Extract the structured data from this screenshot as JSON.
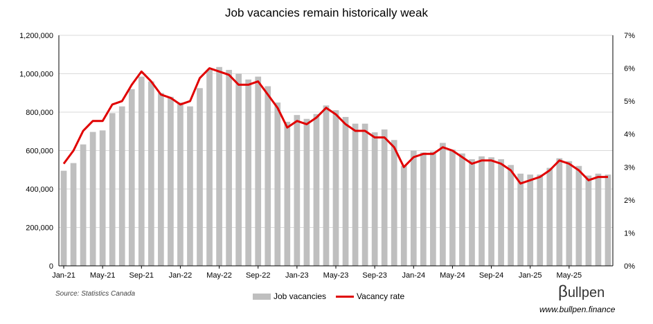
{
  "chart_data": {
    "type": "bar+line",
    "title": "Job vacancies remain historically weak",
    "x_tick_labels": [
      "Jan-21",
      "May-21",
      "Sep-21",
      "Jan-22",
      "May-22",
      "Sep-22",
      "Jan-23",
      "May-23",
      "Sep-23",
      "Jan-24",
      "May-24",
      "Sep-24",
      "Jan-25",
      "May-25"
    ],
    "y_left": {
      "ylim": [
        0,
        1200000
      ],
      "ticks": [
        "0",
        "200,000",
        "400,000",
        "600,000",
        "800,000",
        "1,000,000",
        "1,200,000"
      ]
    },
    "y_right": {
      "ylim": [
        0,
        7
      ],
      "ticks": [
        "0%",
        "1%",
        "2%",
        "3%",
        "4%",
        "5%",
        "6%",
        "7%"
      ]
    },
    "months": [
      "Jan-21",
      "Feb-21",
      "Mar-21",
      "Apr-21",
      "May-21",
      "Jun-21",
      "Jul-21",
      "Aug-21",
      "Sep-21",
      "Oct-21",
      "Nov-21",
      "Dec-21",
      "Jan-22",
      "Feb-22",
      "Mar-22",
      "Apr-22",
      "May-22",
      "Jun-22",
      "Jul-22",
      "Aug-22",
      "Sep-22",
      "Oct-22",
      "Nov-22",
      "Dec-22",
      "Jan-23",
      "Feb-23",
      "Mar-23",
      "Apr-23",
      "May-23",
      "Jun-23",
      "Jul-23",
      "Aug-23",
      "Sep-23",
      "Oct-23",
      "Nov-23",
      "Dec-23",
      "Jan-24",
      "Feb-24",
      "Mar-24",
      "Apr-24",
      "May-24",
      "Jun-24",
      "Jul-24",
      "Aug-24",
      "Sep-24",
      "Oct-24",
      "Nov-24",
      "Dec-24",
      "Jan-25",
      "Feb-25",
      "Mar-25",
      "Apr-25",
      "May-25",
      "Jun-25",
      "Jul-25",
      "Aug-25",
      "Sep-25"
    ],
    "series": [
      {
        "name": "Job vacancies",
        "kind": "bar",
        "color": "#bfbfbf",
        "axis": "left",
        "values": [
          495000,
          535000,
          632000,
          697000,
          705000,
          795000,
          830000,
          920000,
          985000,
          960000,
          900000,
          880000,
          850000,
          830000,
          925000,
          1020000,
          1035000,
          1020000,
          1000000,
          970000,
          985000,
          935000,
          850000,
          750000,
          785000,
          765000,
          790000,
          835000,
          810000,
          775000,
          740000,
          740000,
          695000,
          710000,
          655000,
          520000,
          600000,
          590000,
          595000,
          640000,
          605000,
          585000,
          555000,
          570000,
          565000,
          555000,
          525000,
          480000,
          475000,
          475000,
          510000,
          560000,
          545000,
          520000,
          470000,
          480000,
          475000
        ]
      },
      {
        "name": "Vacancy rate",
        "kind": "line",
        "color": "#e00000",
        "axis": "right",
        "values": [
          3.1,
          3.5,
          4.1,
          4.4,
          4.4,
          4.9,
          5.0,
          5.5,
          5.9,
          5.6,
          5.2,
          5.1,
          4.9,
          5.0,
          5.7,
          6.0,
          5.9,
          5.8,
          5.5,
          5.5,
          5.6,
          5.2,
          4.8,
          4.2,
          4.4,
          4.3,
          4.5,
          4.8,
          4.6,
          4.3,
          4.1,
          4.1,
          3.9,
          3.9,
          3.6,
          3.0,
          3.3,
          3.4,
          3.4,
          3.6,
          3.5,
          3.3,
          3.1,
          3.2,
          3.2,
          3.1,
          2.9,
          2.5,
          2.6,
          2.7,
          2.9,
          3.2,
          3.1,
          2.9,
          2.6,
          2.7,
          2.7
        ]
      }
    ],
    "legend_position": "bottom",
    "grid": "horizontal"
  },
  "footer": {
    "source": "Source: Statistics Canada",
    "brand": "ullpen",
    "brand_glyph": "β",
    "website": "www.bullpen.finance"
  }
}
